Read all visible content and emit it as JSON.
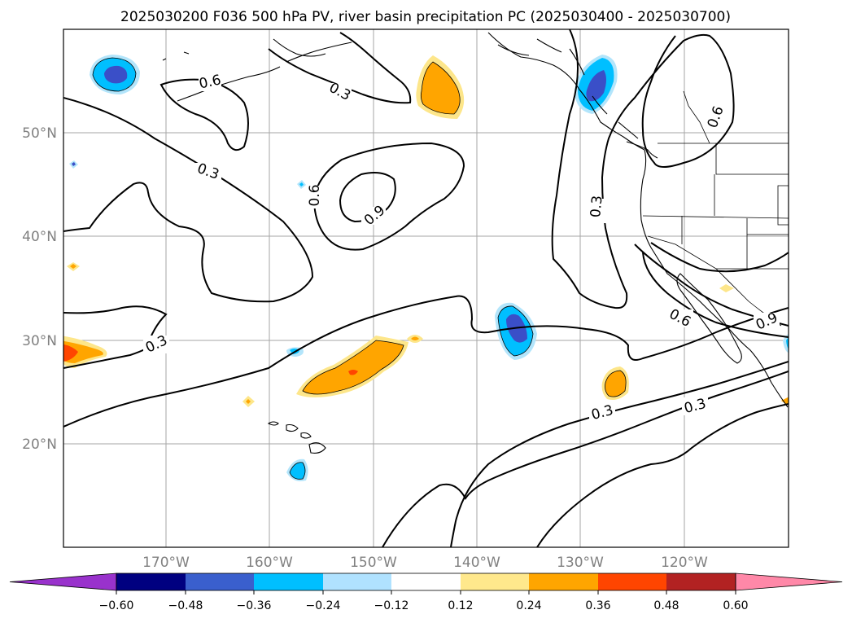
{
  "title": "2025030200 F036 500 hPa PV, river basin precipitation PC (2025030400 - 2025030700)",
  "map": {
    "lat_labels": [
      "50°N",
      "40°N",
      "30°N",
      "20°N"
    ],
    "lon_labels": [
      "170°W",
      "160°W",
      "150°W",
      "140°W",
      "130°W",
      "120°W"
    ],
    "contour_labels": [
      "0.3",
      "0.6",
      "0.9"
    ],
    "shading_colors": {
      "strong_negative": "#3a4fc8",
      "negative": "#00bfff",
      "weak_negative": "#b3e5fb",
      "weak_positive": "#fde68a",
      "positive": "#ffa500",
      "strong_positive": "#ff4500"
    }
  },
  "colorbar": {
    "tick_labels": [
      "−0.60",
      "−0.48",
      "−0.36",
      "−0.24",
      "−0.12",
      "0.12",
      "0.24",
      "0.36",
      "0.48",
      "0.60"
    ],
    "colors": [
      "#9932cc",
      "#000080",
      "#3a5fcd",
      "#00bfff",
      "#b0e2ff",
      "#ffffff",
      "#ffe88c",
      "#ffa500",
      "#ff4500",
      "#b22222",
      "#ff88a8"
    ]
  }
}
